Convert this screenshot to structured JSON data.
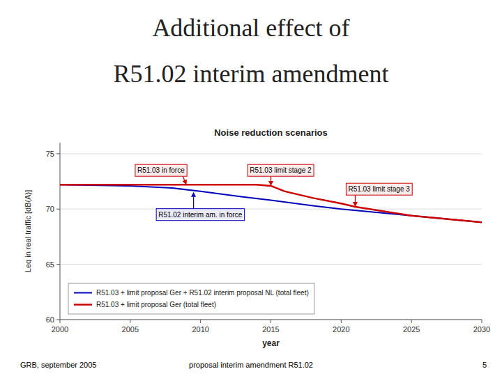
{
  "chart_data": {
    "type": "line",
    "slide_title": [
      "Additional effect of",
      "R51.02 interim amendment"
    ],
    "title": "Noise reduction scenarios",
    "x_label": "year",
    "y_label": "Leq in real traffic [dB(A)]",
    "xlim": [
      2000,
      2030
    ],
    "ylim": [
      60,
      76
    ],
    "xticks": [
      2000,
      2005,
      2010,
      2015,
      2020,
      2025,
      2030
    ],
    "yticks": [
      60,
      65,
      70,
      75
    ],
    "grid": true,
    "legend": "lower left",
    "series": [
      {
        "name": "R51.03 + limit proposal Ger + R51.02 interim proposal NL (total fleet)",
        "color": "#0000bb",
        "x": [
          2000,
          2005,
          2008,
          2010,
          2013,
          2015,
          2018,
          2020,
          2025,
          2030
        ],
        "values": [
          72.2,
          72.1,
          71.9,
          71.6,
          71.1,
          70.8,
          70.3,
          70.0,
          69.4,
          68.8
        ]
      },
      {
        "name": "R51.03 + limit proposal Ger (total fleet)",
        "color": "#cc0000",
        "x": [
          2000,
          2005,
          2008,
          2009,
          2010,
          2013,
          2014,
          2015,
          2016,
          2018,
          2020,
          2021,
          2025,
          2030
        ],
        "values": [
          72.2,
          72.2,
          72.2,
          72.2,
          72.2,
          72.2,
          72.2,
          72.1,
          71.6,
          71.0,
          70.5,
          70.2,
          69.4,
          68.8
        ]
      }
    ],
    "annotations": [
      {
        "text": "R51.03 in force",
        "x": 2009,
        "y": 72.2,
        "text_x": 2005.5,
        "text_y": 73.5,
        "color": "#cc0000"
      },
      {
        "text": "R51.03 limit stage 2",
        "x": 2015,
        "y": 72.1,
        "text_x": 2013.5,
        "text_y": 73.5,
        "color": "#cc0000"
      },
      {
        "text": "R51.03 limit stage 3",
        "x": 2021,
        "y": 70.2,
        "text_x": 2020.5,
        "text_y": 71.8,
        "color": "#cc0000"
      },
      {
        "text": "R51.02 interim am. in force",
        "x": 2009.5,
        "y": 71.55,
        "text_x": 2007.0,
        "text_y": 69.5,
        "color": "#0000bb"
      }
    ],
    "footer": [
      "GRB, september 2005",
      "proposal interim amendment R51.02",
      "5"
    ]
  }
}
